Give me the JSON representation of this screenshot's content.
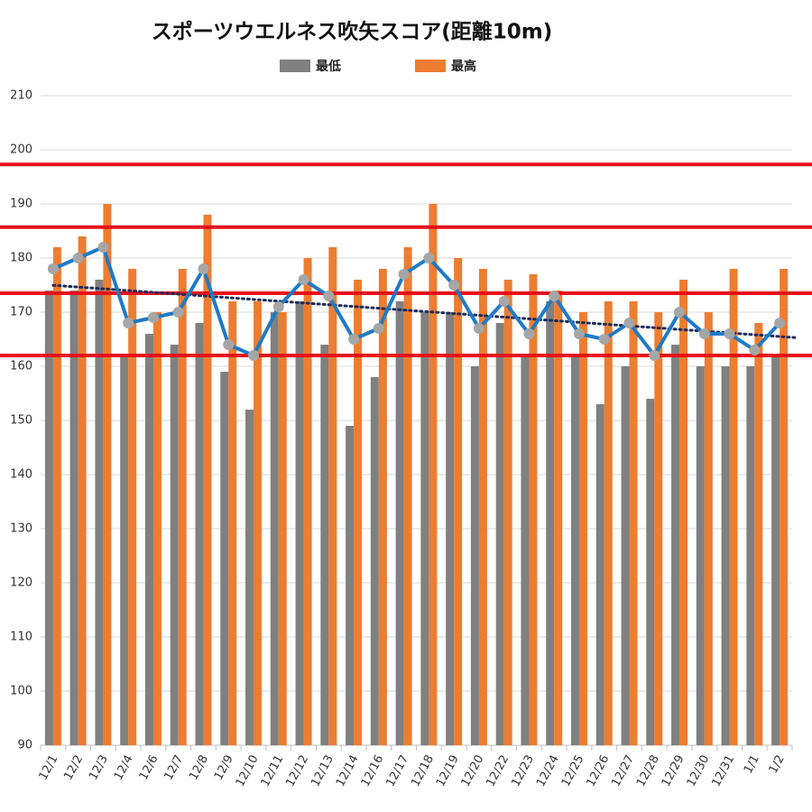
{
  "chart_data": {
    "type": "bar",
    "title": "スポーツウエルネス吹矢スコア(距離10m)",
    "categories": [
      "12/1",
      "12/2",
      "12/3",
      "12/4",
      "12/6",
      "12/7",
      "12/8",
      "12/9",
      "12/10",
      "12/11",
      "12/12",
      "12/13",
      "12/14",
      "12/16",
      "12/17",
      "12/18",
      "12/19",
      "12/20",
      "12/22",
      "12/23",
      "12/24",
      "12/25",
      "12/26",
      "12/27",
      "12/28",
      "12/29",
      "12/30",
      "12/31",
      "1/1",
      "1/2"
    ],
    "series": [
      {
        "name": "最低",
        "color": "#808080",
        "values": [
          174,
          174,
          176,
          162,
          166,
          164,
          168,
          159,
          152,
          170,
          172,
          164,
          149,
          158,
          172,
          170,
          170,
          160,
          168,
          162,
          172,
          162,
          153,
          160,
          154,
          164,
          160,
          160,
          160,
          162
        ]
      },
      {
        "name": "最高",
        "color": "#ed7d31",
        "values": [
          182,
          184,
          190,
          178,
          170,
          178,
          188,
          172,
          172,
          170,
          180,
          182,
          176,
          178,
          182,
          190,
          180,
          178,
          176,
          177,
          174,
          170,
          172,
          172,
          170,
          176,
          170,
          178,
          168,
          178
        ]
      },
      {
        "type": "line",
        "color": "#1f7ac6",
        "marker_color": "#a6a6a6",
        "trendline": true,
        "trendline_color": "#1f2d5a",
        "values": [
          178,
          180,
          182,
          168,
          169,
          170,
          178,
          164,
          162,
          171,
          176,
          173,
          165,
          167,
          177,
          180,
          175,
          167,
          172,
          166,
          173,
          166,
          165,
          168,
          162,
          170,
          166,
          166,
          163,
          168
        ]
      }
    ],
    "reference_lines": [
      197.3,
      185.7,
      173.5,
      162
    ],
    "reference_color": "#e8101a",
    "ylim": [
      90,
      210
    ],
    "yticks": [
      90,
      100,
      110,
      120,
      130,
      140,
      150,
      160,
      170,
      180,
      190,
      200,
      210
    ],
    "grid": true,
    "legend": "top"
  }
}
